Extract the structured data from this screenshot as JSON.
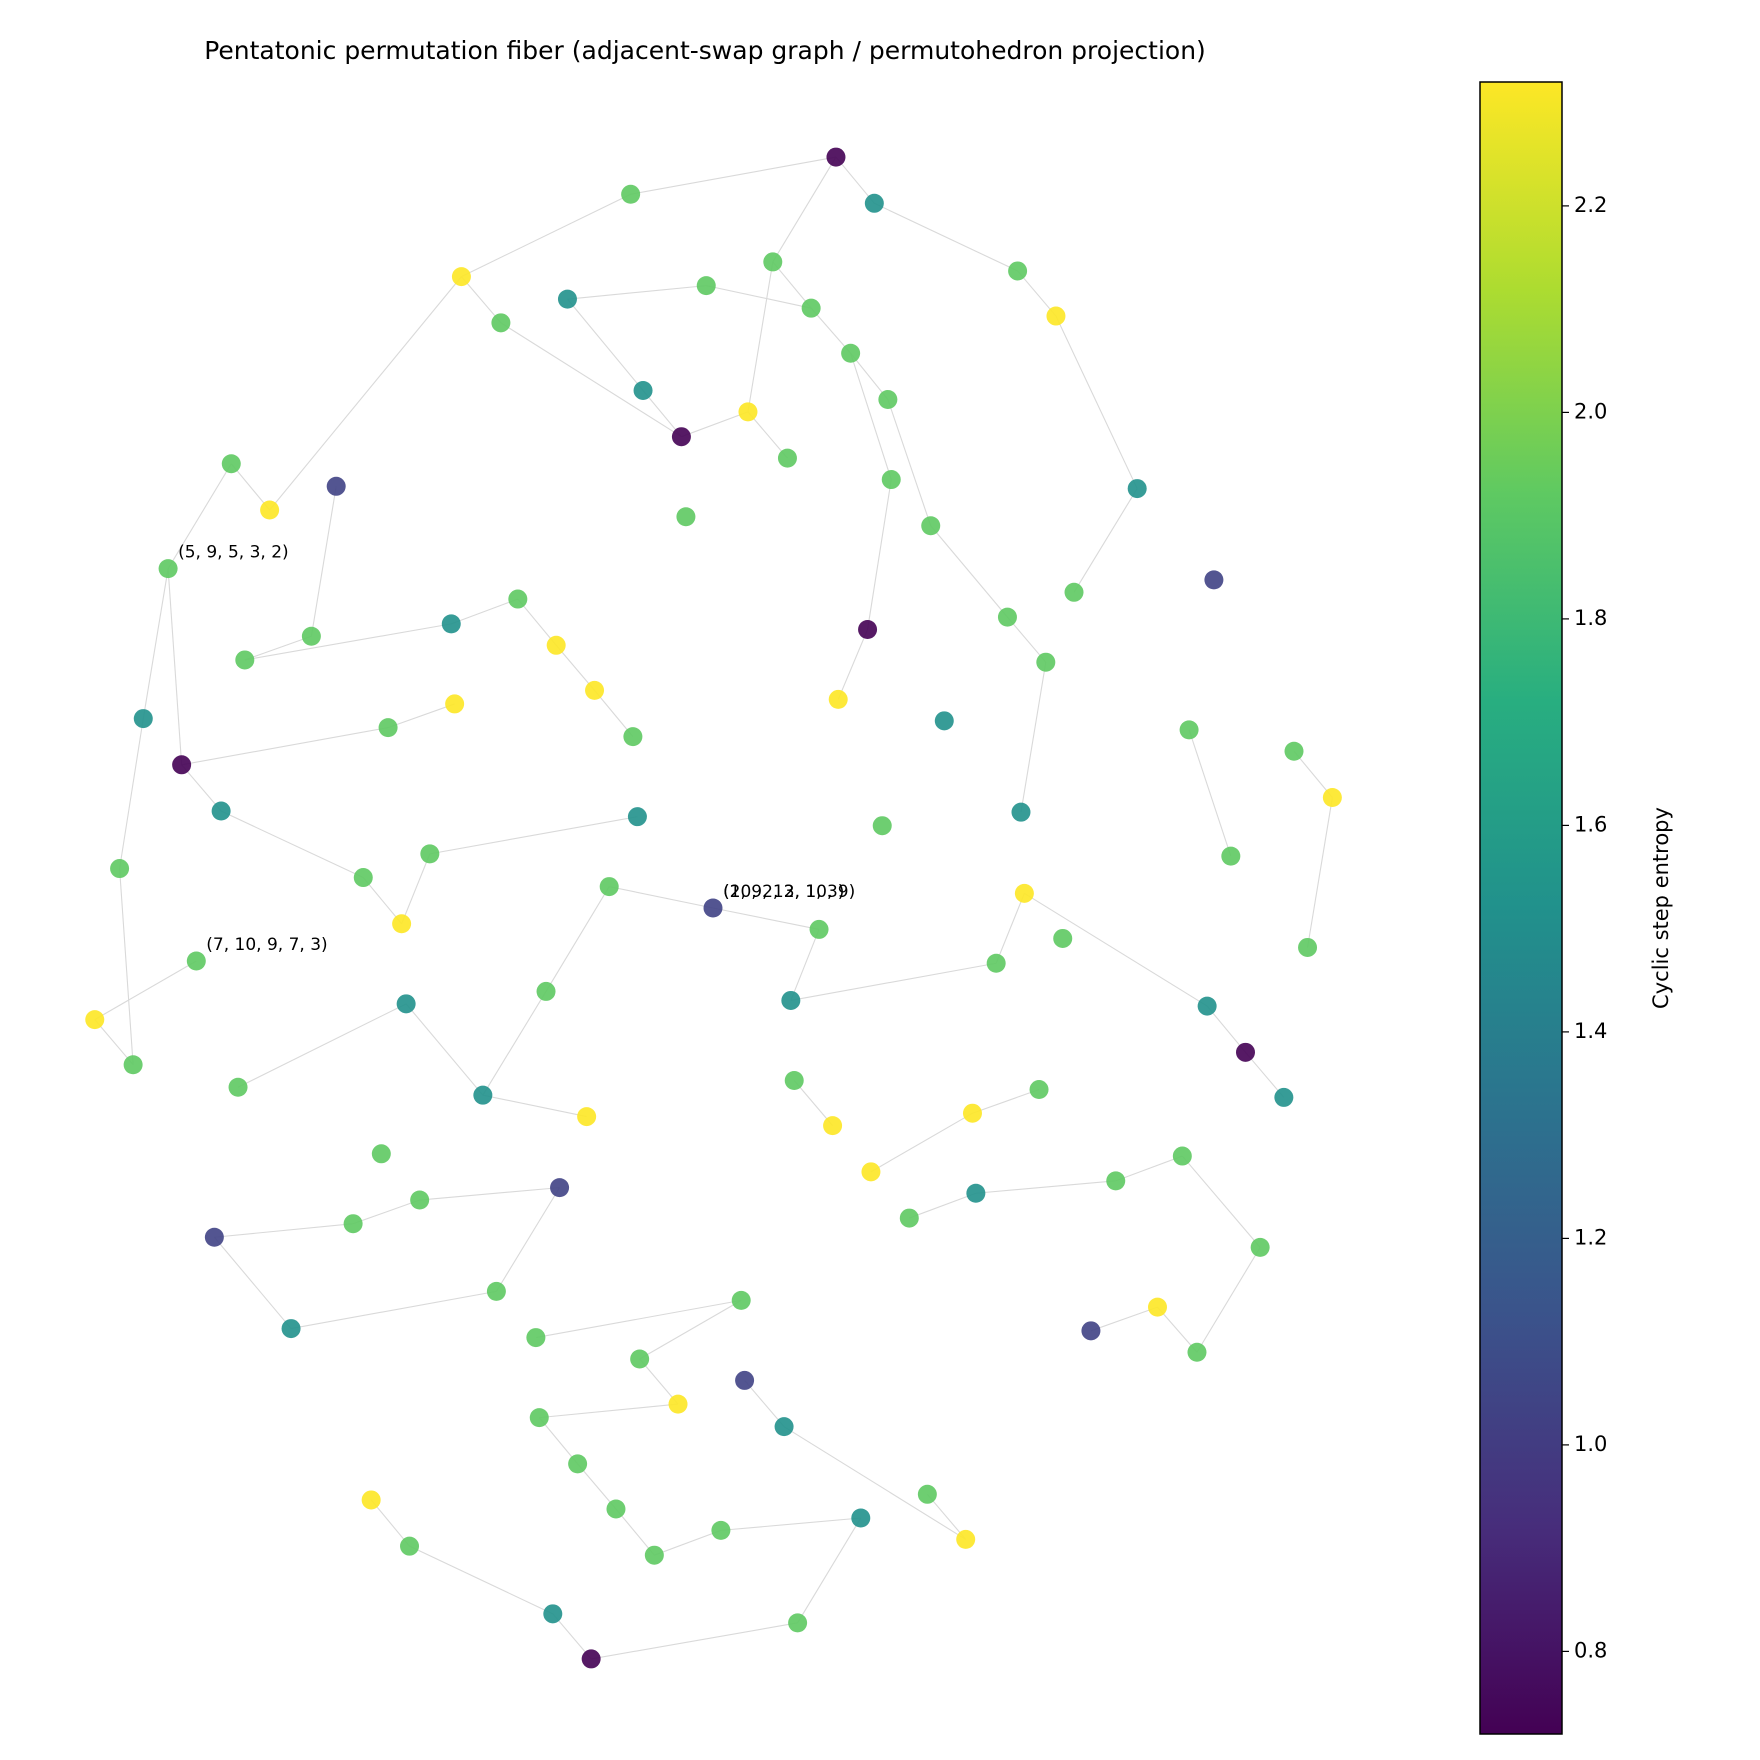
{
  "chart_data": {
    "type": "network",
    "title": "Pentatonic permutation fiber (adjacent-swap graph / permutohedron projection)",
    "colormap": "viridis",
    "colorbar_label": "Cyclic step entropy",
    "clim": [
      0.72,
      2.32
    ],
    "cticks": [
      0.8,
      {
        "value": 1,
        "label": "1.0"
      },
      1.2,
      1.4,
      1.6,
      1.8,
      {
        "value": 2,
        "label": "2.0"
      },
      2.2
    ],
    "xlim": [
      -6.32,
      6.32
    ],
    "ylim": [
      -7.45,
      7.45
    ],
    "edge_color": "#d9d9d9",
    "x": [
      1.09,
      -0.73,
      1.43,
      -2.23,
      -1.29,
      -0.06,
      0.53,
      0.87,
      2.7,
      3.04,
      -1.88,
      1.22,
      -0.62,
      0.31,
      1.55,
      -0.28,
      -4.27,
      -3.34,
      -3.93,
      0.66,
      1.58,
      3.76,
      -0.24,
      1.93,
      -4.83,
      4.44,
      -1.73,
      3.2,
      -2.32,
      -3.56,
      1.37,
      2.61,
      -4.15,
      -1.39,
      2.95,
      -1.05,
      -2.29,
      1.11,
      -5.05,
      -2.88,
      2.05,
      4.22,
      5.15,
      -4.71,
      -0.71,
      5.49,
      -4.36,
      2.73,
      -0.67,
      1.5,
      -5.26,
      -2.51,
      4.59,
      -3.1,
      -0.92,
      0,
      2.76,
      -2.76,
      0.94,
      3.1,
      5.27,
      -4.58,
      2.51,
      -1.48,
      0.69,
      -2.72,
      4.38,
      -5.48,
      4.72,
      -5.14,
      -4.21,
      0.72,
      2.89,
      -2.04,
      5.06,
      -1.12,
      1.06,
      2.3,
      -2.94,
      4.16,
      1.4,
      3.57,
      -1.36,
      -2.6,
      2.33,
      1.74,
      -3.19,
      -4.42,
      4.85,
      -1.92,
      0.25,
      3.94,
      -3.74,
      3.35,
      -1.57,
      4.29,
      -0.65,
      0.28,
      -0.31,
      -1.54,
      0.63,
      -1.2,
      1.9,
      -3.03,
      -0.86,
      0.07,
      1.31,
      2.24,
      -2.69,
      -0.52,
      -1.42,
      0.75,
      -1.08
    ],
    "y": [
      6.66,
      6.33,
      6.25,
      5.6,
      5.4,
      5.52,
      5.73,
      5.32,
      5.65,
      5.25,
      5.19,
      4.92,
      4.59,
      4.4,
      4.51,
      4.18,
      3.94,
      3.74,
      3.53,
      3.99,
      3.8,
      3.72,
      3.47,
      3.39,
      3.01,
      2.91,
      2.74,
      2.8,
      2.52,
      2.41,
      2.47,
      2.58,
      2.2,
      2.33,
      2.18,
      1.93,
      1.81,
      1.85,
      1.68,
      1.6,
      1.66,
      1.58,
      1.39,
      1.27,
      1.52,
      0.98,
      0.86,
      0.85,
      0.81,
      0.73,
      0.35,
      0.48,
      0.46,
      0.27,
      0.19,
      0,
      0.13,
      -0.14,
      -0.19,
      -0.27,
      -0.35,
      -0.47,
      -0.49,
      -0.74,
      -0.82,
      -0.85,
      -0.87,
      -0.99,
      -1.28,
      -1.39,
      -1.59,
      -1.53,
      -1.61,
      -1.66,
      -1.68,
      -1.85,
      -1.93,
      -1.82,
      -2.18,
      -2.2,
      -2.34,
      -2.42,
      -2.48,
      -2.59,
      -2.53,
      -2.75,
      -2.8,
      -2.92,
      -3.01,
      -3.4,
      -3.48,
      -3.54,
      -3.73,
      -3.75,
      -3.81,
      -3.94,
      -4.0,
      -4.19,
      -4.4,
      -4.52,
      -4.6,
      -4.93,
      -5.2,
      -5.25,
      -5.33,
      -5.52,
      -5.41,
      -5.6,
      -5.66,
      -5.74,
      -6.26,
      -6.34,
      -6.66
    ],
    "values": [
      0.72,
      1.92,
      1.52,
      2.32,
      1.52,
      1.92,
      1.92,
      1.92,
      1.92,
      2.32,
      1.92,
      1.92,
      1.52,
      2.32,
      1.92,
      0.72,
      1.92,
      1.04,
      2.32,
      1.92,
      1.92,
      1.52,
      1.92,
      1.92,
      1.92,
      1.04,
      1.92,
      1.92,
      1.52,
      1.92,
      0.72,
      1.92,
      1.92,
      2.32,
      1.92,
      2.32,
      2.32,
      2.32,
      1.52,
      1.92,
      1.52,
      1.92,
      1.92,
      0.72,
      1.92,
      2.32,
      1.52,
      1.52,
      1.52,
      1.92,
      1.92,
      1.92,
      1.92,
      1.92,
      1.92,
      1.04,
      2.32,
      2.32,
      1.92,
      1.92,
      1.92,
      1.92,
      1.92,
      1.92,
      1.52,
      1.52,
      1.52,
      2.32,
      0.72,
      1.92,
      1.92,
      1.92,
      1.92,
      1.52,
      1.52,
      2.32,
      2.32,
      2.32,
      1.92,
      1.92,
      2.32,
      1.92,
      1.04,
      1.92,
      1.52,
      1.92,
      1.92,
      1.04,
      1.92,
      1.92,
      1.92,
      2.32,
      1.52,
      1.04,
      1.92,
      1.92,
      1.92,
      1.04,
      2.32,
      1.92,
      1.52,
      1.92,
      1.92,
      2.32,
      1.92,
      1.92,
      1.52,
      2.32,
      1.92,
      1.92,
      1.52,
      1.92,
      0.72
    ],
    "edges": [
      [
        0,
        1
      ],
      [
        0,
        2
      ],
      [
        0,
        6
      ],
      [
        2,
        8
      ],
      [
        8,
        9
      ],
      [
        3,
        10
      ],
      [
        3,
        18
      ],
      [
        1,
        3
      ],
      [
        4,
        5
      ],
      [
        4,
        12
      ],
      [
        10,
        15
      ],
      [
        5,
        7
      ],
      [
        6,
        7
      ],
      [
        6,
        13
      ],
      [
        7,
        11
      ],
      [
        11,
        14
      ],
      [
        12,
        15
      ],
      [
        13,
        15
      ],
      [
        13,
        19
      ],
      [
        11,
        20
      ],
      [
        14,
        23
      ],
      [
        9,
        21
      ],
      [
        21,
        27
      ],
      [
        16,
        18
      ],
      [
        16,
        24
      ],
      [
        17,
        29
      ],
      [
        24,
        43
      ],
      [
        24,
        38
      ],
      [
        26,
        28
      ],
      [
        26,
        33
      ],
      [
        28,
        32
      ],
      [
        32,
        29
      ],
      [
        43,
        39
      ],
      [
        39,
        36
      ],
      [
        33,
        35
      ],
      [
        35,
        44
      ],
      [
        30,
        20
      ],
      [
        30,
        37
      ],
      [
        31,
        23
      ],
      [
        34,
        31
      ],
      [
        34,
        47
      ],
      [
        41,
        52
      ],
      [
        42,
        45
      ],
      [
        45,
        60
      ],
      [
        43,
        46
      ],
      [
        46,
        53
      ],
      [
        38,
        50
      ],
      [
        50,
        69
      ],
      [
        67,
        69
      ],
      [
        61,
        67
      ],
      [
        53,
        57
      ],
      [
        57,
        51
      ],
      [
        51,
        48
      ],
      [
        55,
        58
      ],
      [
        55,
        54
      ],
      [
        58,
        64
      ],
      [
        64,
        62
      ],
      [
        62,
        56
      ],
      [
        56,
        66
      ],
      [
        66,
        68
      ],
      [
        68,
        74
      ],
      [
        70,
        65
      ],
      [
        65,
        73
      ],
      [
        73,
        75
      ],
      [
        82,
        83
      ],
      [
        83,
        86
      ],
      [
        86,
        87
      ],
      [
        87,
        92
      ],
      [
        92,
        89
      ],
      [
        89,
        82
      ],
      [
        94,
        90
      ],
      [
        90,
        96
      ],
      [
        96,
        98
      ],
      [
        98,
        99
      ],
      [
        99,
        101
      ],
      [
        101,
        104
      ],
      [
        104,
        109
      ],
      [
        109,
        105
      ],
      [
        105,
        106
      ],
      [
        106,
        111
      ],
      [
        111,
        112
      ],
      [
        112,
        110
      ],
      [
        110,
        108
      ],
      [
        108,
        103
      ],
      [
        97,
        100
      ],
      [
        100,
        107
      ],
      [
        107,
        102
      ],
      [
        91,
        93
      ],
      [
        91,
        95
      ],
      [
        95,
        88
      ],
      [
        88,
        79
      ],
      [
        79,
        81
      ],
      [
        81,
        84
      ],
      [
        84,
        85
      ],
      [
        80,
        77
      ],
      [
        77,
        72
      ],
      [
        71,
        76
      ],
      [
        63,
        54
      ],
      [
        63,
        73
      ]
    ],
    "annotations": [
      {
        "text": "(5, 9, 5, 3, 2)",
        "node": 24
      },
      {
        "text": "(7, 10, 9, 7, 3)",
        "node": 61
      },
      {
        "text": "(10, 2, 3, 10, 9)",
        "node": 55
      },
      {
        "text": "(2, 9, 12, 1, 3)",
        "node": 55
      }
    ]
  }
}
